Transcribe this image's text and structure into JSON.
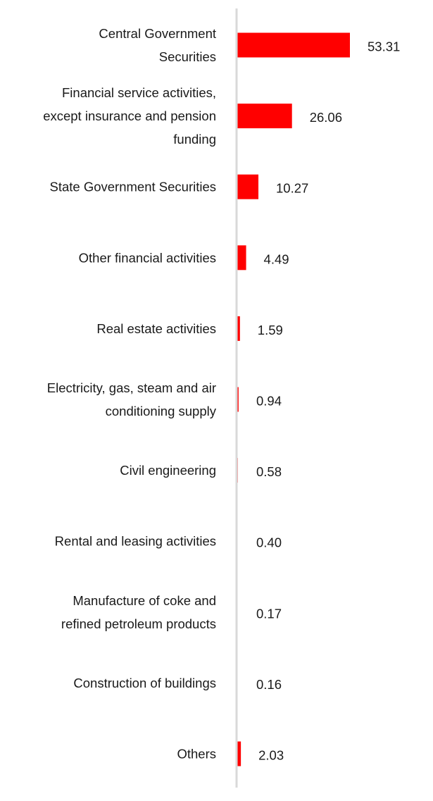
{
  "chart_data": {
    "type": "bar",
    "orientation": "horizontal",
    "categories": [
      [
        "Central Government",
        "Securities"
      ],
      [
        "Financial service activities,",
        "except insurance and pension",
        "funding"
      ],
      [
        "State Government Securities"
      ],
      [
        "Other financial activities"
      ],
      [
        "Real estate activities"
      ],
      [
        "Electricity, gas, steam and air",
        "conditioning supply"
      ],
      [
        "Civil engineering"
      ],
      [
        "Rental and leasing activities"
      ],
      [
        "Manufacture of coke and",
        "refined petroleum products"
      ],
      [
        "Construction of buildings"
      ],
      [
        "Others"
      ]
    ],
    "values": [
      53.31,
      26.06,
      10.27,
      4.49,
      1.59,
      0.94,
      0.58,
      0.4,
      0.17,
      0.16,
      2.03
    ],
    "value_labels": [
      "53.31",
      "26.06",
      "10.27",
      "4.49",
      "1.59",
      "0.94",
      "0.58",
      "0.40",
      "0.17",
      "0.16",
      "2.03"
    ],
    "title": "",
    "xlabel": "",
    "ylabel": "",
    "xlim": [
      0,
      53.31
    ],
    "grid": false,
    "legend": "none",
    "bar_color": "#ff0000",
    "axis_color": "#d9d9d9"
  }
}
